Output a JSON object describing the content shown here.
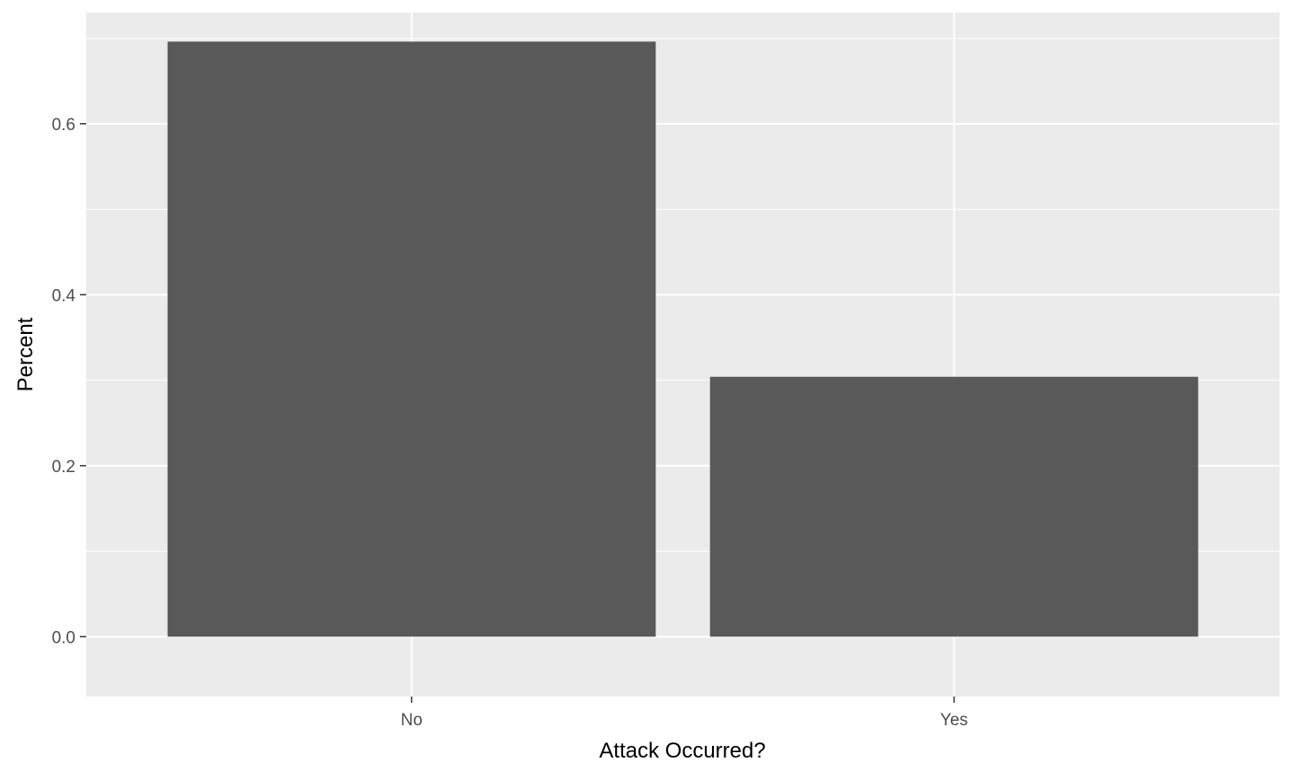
{
  "chart_data": {
    "type": "bar",
    "categories": [
      "No",
      "Yes"
    ],
    "values": [
      0.696,
      0.304
    ],
    "title": "",
    "xlabel": "Attack Occurred?",
    "ylabel": "Percent",
    "ylim": [
      -0.07,
      0.73
    ],
    "yticks": [
      0.0,
      0.2,
      0.4,
      0.6
    ],
    "ytick_labels": [
      "0.0",
      "0.2",
      "0.4",
      "0.6"
    ],
    "grid": true,
    "legend": "none",
    "colors": {
      "panel_background": "#EBEBEB",
      "grid": "#FFFFFF",
      "bar_fill": "#595959",
      "tick_text": "#4D4D4D",
      "axis_title": "#000000"
    }
  }
}
